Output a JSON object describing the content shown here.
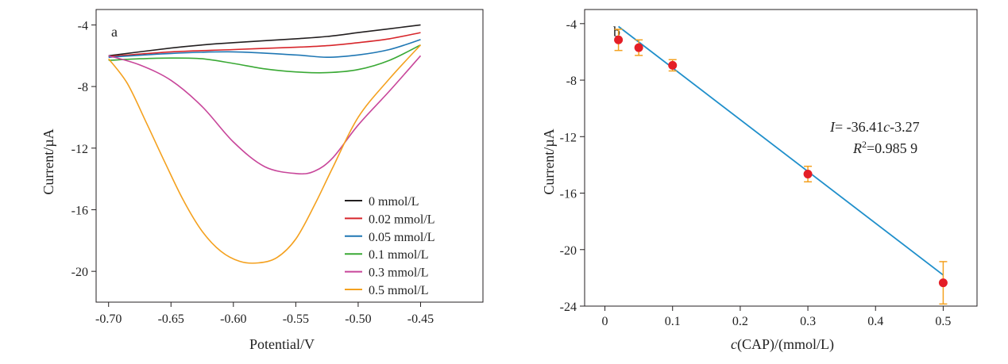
{
  "chart_data": [
    {
      "panel": "a",
      "type": "line",
      "xlabel": "Potential/V",
      "ylabel": "Current/µA",
      "xlim": [
        -0.71,
        -0.4
      ],
      "ylim": [
        -22,
        -3
      ],
      "xticks": [
        -0.7,
        -0.65,
        -0.6,
        -0.55,
        -0.5,
        -0.45
      ],
      "xtick_labels": [
        "-0.70",
        "-0.65",
        "-0.60",
        "-0.55",
        "-0.50",
        "-0.45"
      ],
      "yticks": [
        -20,
        -16,
        -12,
        -8,
        -4
      ],
      "ytick_labels": [
        "-20",
        "-16",
        "-12",
        "-8",
        "-4"
      ],
      "legend_position": "bottom-right",
      "series": [
        {
          "name": "0 mmol/L",
          "color": "#231f20",
          "x": [
            -0.7,
            -0.65,
            -0.625,
            -0.6,
            -0.55,
            -0.525,
            -0.5,
            -0.475,
            -0.45
          ],
          "y": [
            -6.0,
            -5.5,
            -5.3,
            -5.15,
            -4.9,
            -4.75,
            -4.5,
            -4.25,
            -4.0
          ]
        },
        {
          "name": "0.02 mmol/L",
          "color": "#d7262b",
          "x": [
            -0.7,
            -0.65,
            -0.6,
            -0.55,
            -0.525,
            -0.5,
            -0.475,
            -0.45
          ],
          "y": [
            -6.05,
            -5.75,
            -5.6,
            -5.45,
            -5.35,
            -5.15,
            -4.9,
            -4.5
          ]
        },
        {
          "name": "0.05 mmol/L",
          "color": "#1f77b4",
          "x": [
            -0.7,
            -0.65,
            -0.6,
            -0.55,
            -0.525,
            -0.5,
            -0.475,
            -0.45
          ],
          "y": [
            -6.1,
            -5.85,
            -5.75,
            -5.95,
            -6.1,
            -5.95,
            -5.6,
            -4.95
          ]
        },
        {
          "name": "0.1 mmol/L",
          "color": "#3aa935",
          "x": [
            -0.7,
            -0.675,
            -0.65,
            -0.625,
            -0.6,
            -0.575,
            -0.55,
            -0.525,
            -0.5,
            -0.475,
            -0.45
          ],
          "y": [
            -6.3,
            -6.2,
            -6.15,
            -6.2,
            -6.5,
            -6.85,
            -7.05,
            -7.1,
            -6.9,
            -6.3,
            -5.3
          ]
        },
        {
          "name": "0.3 mmol/L",
          "color": "#c8469a",
          "x": [
            -0.7,
            -0.675,
            -0.65,
            -0.625,
            -0.6,
            -0.575,
            -0.55,
            -0.535,
            -0.52,
            -0.5,
            -0.475,
            -0.45
          ],
          "y": [
            -6.0,
            -6.6,
            -7.6,
            -9.3,
            -11.6,
            -13.2,
            -13.65,
            -13.5,
            -12.6,
            -10.5,
            -8.3,
            -6.0
          ]
        },
        {
          "name": "0.5 mmol/L",
          "color": "#f4a11f",
          "x": [
            -0.7,
            -0.685,
            -0.67,
            -0.655,
            -0.64,
            -0.625,
            -0.61,
            -0.595,
            -0.58,
            -0.565,
            -0.55,
            -0.535,
            -0.52,
            -0.5,
            -0.475,
            -0.45
          ],
          "y": [
            -6.2,
            -7.8,
            -10.3,
            -12.9,
            -15.4,
            -17.4,
            -18.7,
            -19.35,
            -19.45,
            -19.1,
            -17.9,
            -15.7,
            -13.2,
            -10.0,
            -7.5,
            -5.3
          ]
        }
      ]
    },
    {
      "panel": "b",
      "type": "scatter",
      "xlabel_italic": "c",
      "xlabel_rest": "(CAP)/(mmol/L)",
      "ylabel": "Current/µA",
      "xlim": [
        -0.03,
        0.55
      ],
      "ylim": [
        -24,
        -3
      ],
      "xticks": [
        0,
        0.1,
        0.2,
        0.3,
        0.4,
        0.5
      ],
      "xtick_labels": [
        "0",
        "0.1",
        "0.2",
        "0.3",
        "0.4",
        "0.5"
      ],
      "yticks": [
        -24,
        -20,
        -16,
        -12,
        -8,
        -4
      ],
      "ytick_labels": [
        "-24",
        "-20",
        "-16",
        "-12",
        "-8",
        "-4"
      ],
      "points": {
        "color": "#e41e26",
        "errorbar_color": "#f4a11f",
        "x": [
          0.02,
          0.05,
          0.1,
          0.3,
          0.5
        ],
        "y": [
          -5.15,
          -5.7,
          -6.95,
          -14.65,
          -22.35
        ],
        "err": [
          0.75,
          0.55,
          0.4,
          0.55,
          1.5
        ]
      },
      "fit_line": {
        "color": "#1f8fcb",
        "x": [
          0.02,
          0.5
        ],
        "y": [
          -4.2,
          -21.8
        ]
      },
      "equation": {
        "i_label": "I",
        "line1_rest": "= -36.41",
        "c_label": "c",
        "line1_tail": "-3.27",
        "r_label": "R",
        "r_sup": "2",
        "r_value": "=0.985 9"
      }
    }
  ]
}
